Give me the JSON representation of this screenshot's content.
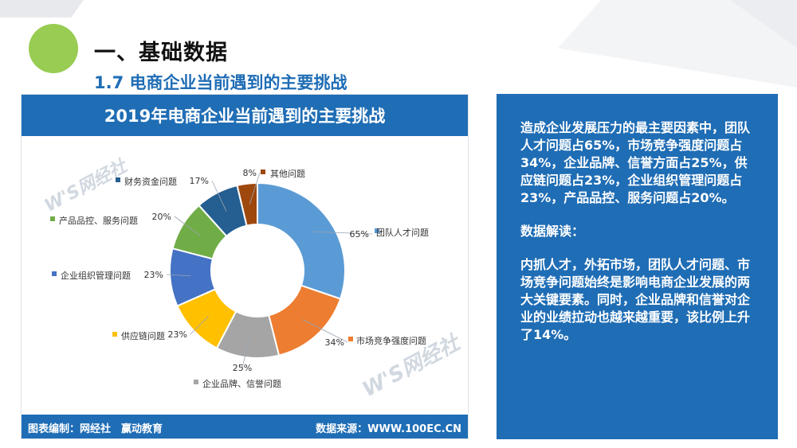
{
  "header": {
    "section_title": "一、基础数据",
    "sub_title": "1.7 电商企业当前遇到的主要挑战"
  },
  "chart_data": {
    "type": "pie",
    "title": "2019年电商企业当前遇到的主要挑战",
    "unit": "%",
    "categories": [
      "团队人才问题",
      "市场竞争强度问题",
      "企业品牌、信誉问题",
      "供应链问题",
      "企业组织管理问题",
      "产品品控、服务问题",
      "财务资金问题",
      "其他问题"
    ],
    "values": [
      65,
      34,
      25,
      23,
      23,
      20,
      17,
      8
    ],
    "labels": [
      "65%",
      "34%",
      "25%",
      "23%",
      "23%",
      "20%",
      "17%",
      "8%"
    ],
    "colors": [
      "#5b9bd5",
      "#ed7d31",
      "#a5a5a5",
      "#ffc000",
      "#4472c4",
      "#70ad47",
      "#255e91",
      "#9e480e"
    ],
    "legend_placement": "callouts around the donut"
  },
  "footer": {
    "left": "图表编制：网经社　赢动教育",
    "right": "数据来源：WWW.100EC.CN"
  },
  "watermark": {
    "text": "W'S网经社"
  },
  "info": {
    "summary": "造成企业发展压力的最主要因素中，团队人才问题占65%，市场竞争强度问题占34%，企业品牌、信誉方面占25%，供应链问题占23%，企业组织管理问题占23%，产品品控、服务问题占20%。",
    "heading": "数据解读：",
    "interpretation": "内抓人才，外拓市场，团队人才问题、市场竞争问题始终是影响电商企业发展的两大关键要素。同时，企业品牌和信誉对企业的业绩拉动也越来越重要，该比例上升了14%。"
  }
}
